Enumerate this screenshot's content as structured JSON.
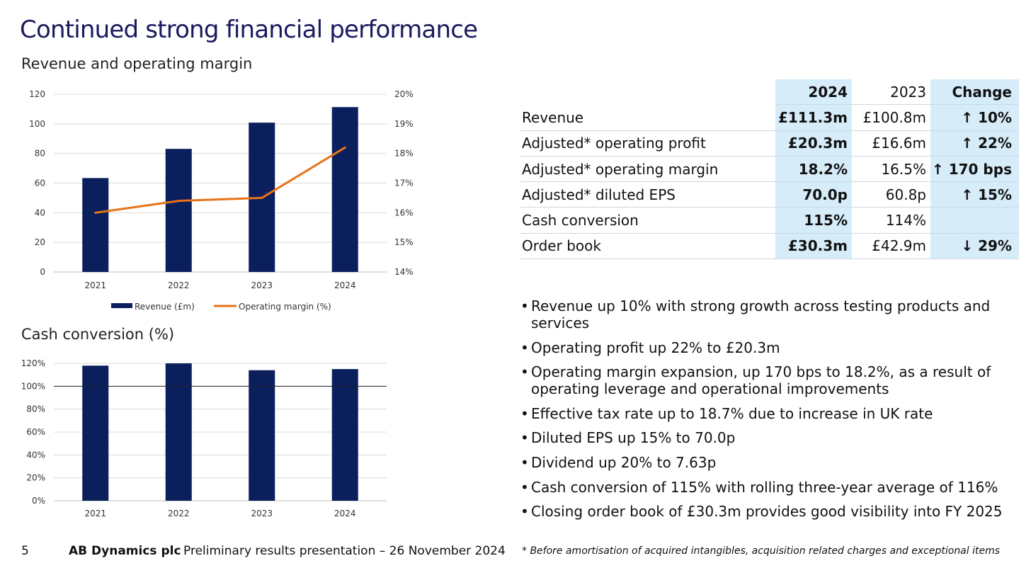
{
  "slide": {
    "title": "Continued strong financial performance",
    "subtitle": "Revenue and operating margin",
    "cash_title": "Cash conversion (%)"
  },
  "colors": {
    "navy": "#0b1f5c",
    "orange": "#e8731a",
    "highlight": "#d6ecf9"
  },
  "chart_data": [
    {
      "type": "bar",
      "title": "Revenue and operating margin",
      "categories": [
        "2021",
        "2022",
        "2023",
        "2024"
      ],
      "series": [
        {
          "name": "Revenue (£m)",
          "type": "bar",
          "axis": "left",
          "values": [
            63.4,
            83.1,
            100.8,
            111.3
          ]
        },
        {
          "name": "Operating margin (%)",
          "type": "line",
          "axis": "right",
          "values": [
            16.0,
            16.4,
            16.5,
            18.2
          ]
        }
      ],
      "y_left": {
        "min": 0,
        "max": 120,
        "step": 20,
        "ticks": [
          "0",
          "20",
          "40",
          "60",
          "80",
          "100",
          "120"
        ]
      },
      "y_right": {
        "min": 14,
        "max": 20,
        "step": 1,
        "ticks": [
          "14%",
          "15%",
          "16%",
          "17%",
          "18%",
          "19%",
          "20%"
        ]
      },
      "legend": [
        "Revenue (£m)",
        "Operating margin (%)"
      ],
      "legend_position": "bottom",
      "grid": true
    },
    {
      "type": "bar",
      "title": "Cash conversion (%)",
      "categories": [
        "2021",
        "2022",
        "2023",
        "2024"
      ],
      "series": [
        {
          "name": "Cash conversion (%)",
          "values": [
            118,
            120,
            114,
            115
          ]
        }
      ],
      "ylim": [
        0,
        120
      ],
      "y_ticks": [
        "0%",
        "20%",
        "40%",
        "60%",
        "80%",
        "100%",
        "120%"
      ],
      "reference_line": 100,
      "grid": true
    }
  ],
  "table": {
    "headers": [
      "",
      "2024",
      "2023",
      "Change"
    ],
    "rows": [
      {
        "label": "Revenue",
        "y2024": "£111.3m",
        "y2023": "£100.8m",
        "change": "↑ 10%"
      },
      {
        "label": "Adjusted* operating profit",
        "y2024": "£20.3m",
        "y2023": "£16.6m",
        "change": "↑ 22%"
      },
      {
        "label": "Adjusted* operating margin",
        "y2024": "18.2%",
        "y2023": "16.5%",
        "change": "↑ 170 bps"
      },
      {
        "label": "Adjusted* diluted EPS",
        "y2024": "70.0p",
        "y2023": "60.8p",
        "change": "↑ 15%"
      },
      {
        "label": "Cash conversion",
        "y2024": "115%",
        "y2023": "114%",
        "change": ""
      },
      {
        "label": "Order book",
        "y2024": "£30.3m",
        "y2023": "£42.9m",
        "change": "↓ 29%"
      }
    ]
  },
  "bullets": [
    "Revenue up 10% with strong growth across testing products and services",
    "Operating profit up 22% to £20.3m",
    "Operating margin expansion, up 170 bps to 18.2%, as a result of operating leverage and operational improvements",
    "Effective tax rate up to 18.7% due to increase in UK rate",
    "Diluted EPS up 15% to 70.0p",
    "Dividend up 20% to 7.63p",
    "Cash conversion of 115% with rolling three-year average of 116%",
    "Closing order book of £30.3m provides good visibility into FY 2025"
  ],
  "footer": {
    "page_number": "5",
    "company": "AB Dynamics plc",
    "presentation": "Preliminary results presentation – 26 November 2024",
    "footnote": "* Before amortisation of acquired intangibles, acquisition related charges and exceptional items"
  }
}
